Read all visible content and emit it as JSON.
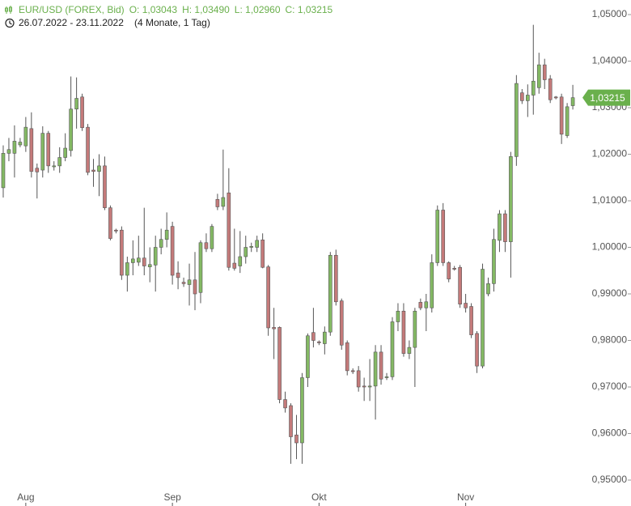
{
  "chart_data": {
    "type": "candlestick",
    "title": "EUR/USD (FOREX, Bid)",
    "ohlc_labels": [
      "O: 1,03043",
      "H: 1,03490",
      "L: 1,02960",
      "C: 1,03215"
    ],
    "date_range": "26.07.2022 - 23.11.2022",
    "period": "(4 Monate, 1 Tag)",
    "up_color": "#84b964",
    "down_color": "#c47a7a",
    "open": [
      1.0128,
      1.0202,
      1.0202,
      1.022,
      1.0218,
      1.0255,
      1.017,
      1.0166,
      1.0245,
      1.0173,
      1.0175,
      1.0193,
      1.0208,
      1.0297,
      1.0323,
      1.0258,
      1.0166,
      1.0163,
      1.0175,
      1.0085,
      1.0037,
      1.0037,
      0.994,
      0.9967,
      0.9968,
      0.9977,
      0.9958,
      0.9962,
      1.0,
      1.0017,
      1.0045,
      0.9945,
      0.9925,
      0.992,
      0.993,
      0.9903,
      1.001,
      0.9997,
      1.0103,
      1.0088,
      1.0117,
      0.9966,
      0.996,
      0.998,
      1.0,
      1.0,
      1.0016,
      0.9958,
      0.9828,
      0.9828,
      0.9673,
      0.966,
      0.9597,
      0.958,
      0.972,
      0.9817,
      0.9797,
      0.9793,
      0.9818,
      0.9983,
      0.9885,
      0.9795,
      0.9735,
      0.9735,
      0.9702,
      0.97,
      0.9702,
      0.9775,
      0.972,
      0.9722,
      0.984,
      0.9863,
      0.9772,
      0.9785,
      0.9882,
      0.987,
      0.987,
      0.9967,
      1.008,
      0.9967,
      0.9955,
      0.9957,
      0.988,
      0.9873,
      0.9815,
      0.9745,
      0.99,
      0.9922,
      1.0015,
      1.0072,
      1.0012,
      1.0195,
      1.0332,
      1.0315,
      1.0327,
      1.0343,
      1.0392,
      1.0362,
      1.0323,
      1.0323,
      1.024,
      1.03043
    ],
    "high": [
      1.0219,
      1.0235,
      1.0262,
      1.0235,
      1.028,
      1.029,
      1.018,
      1.026,
      1.025,
      1.0185,
      1.0215,
      1.0245,
      1.0367,
      1.0365,
      1.033,
      1.0265,
      1.019,
      1.02,
      1.0195,
      1.009,
      1.004,
      1.0045,
      0.998,
      1.0015,
      1.0025,
      1.0085,
      1.0,
      1.0025,
      1.004,
      1.0075,
      1.0055,
      0.997,
      0.9935,
      0.9965,
      0.999,
      1.0015,
      1.003,
      1.005,
      1.0115,
      1.021,
      1.017,
      1.004,
      1.0035,
      1.0025,
      1.001,
      1.0025,
      1.003,
      0.9962,
      0.987,
      0.983,
      0.969,
      0.9665,
      0.964,
      0.973,
      0.9815,
      0.987,
      0.98,
      0.983,
      0.999,
      0.9995,
      0.989,
      0.98,
      0.974,
      0.9745,
      0.972,
      0.976,
      0.979,
      0.979,
      0.973,
      0.985,
      0.988,
      0.988,
      0.98,
      0.987,
      0.989,
      0.99,
      0.9985,
      1.009,
      1.0095,
      0.997,
      0.996,
      0.9962,
      0.99,
      0.988,
      0.982,
      0.9965,
      0.9935,
      1.004,
      1.008,
      1.008,
      1.0205,
      1.037,
      1.034,
      1.035,
      1.0478,
      1.0418,
      1.0405,
      1.037,
      1.0325,
      1.033,
      1.031,
      1.0349
    ],
    "low": [
      1.0107,
      1.0185,
      1.015,
      1.0215,
      1.0205,
      1.015,
      1.0105,
      1.015,
      1.016,
      1.0165,
      1.016,
      1.0185,
      1.0195,
      1.0255,
      1.025,
      1.0155,
      1.013,
      1.011,
      1.008,
      1.0015,
      1.003,
      0.993,
      0.9905,
      0.994,
      0.996,
      0.994,
      0.9925,
      0.9905,
      0.9985,
      1.0,
      0.992,
      0.991,
      0.9915,
      0.9875,
      0.9865,
      0.988,
      0.999,
      0.999,
      1.008,
      1.008,
      0.995,
      0.995,
      0.9945,
      0.9965,
      0.999,
      0.999,
      0.9955,
      0.981,
      0.976,
      0.9665,
      0.9645,
      0.9535,
      0.9545,
      0.9535,
      0.97,
      0.9785,
      0.979,
      0.977,
      0.981,
      0.9875,
      0.978,
      0.9725,
      0.9728,
      0.969,
      0.967,
      0.967,
      0.963,
      0.9705,
      0.9715,
      0.9715,
      0.982,
      0.9765,
      0.976,
      0.97,
      0.9865,
      0.982,
      0.986,
      0.996,
      0.996,
      0.9925,
      0.995,
      0.987,
      0.986,
      0.9805,
      0.973,
      0.974,
      0.9895,
      0.9905,
      0.999,
      0.999,
      0.9935,
      1.0175,
      1.0308,
      1.028,
      1.0285,
      1.033,
      1.034,
      1.031,
      1.0318,
      1.0222,
      1.0235,
      1.0296
    ],
    "close": [
      1.0202,
      1.021,
      1.0228,
      1.0226,
      1.0258,
      1.0163,
      1.0162,
      1.0245,
      1.0175,
      1.0175,
      1.0193,
      1.0213,
      1.0297,
      1.032,
      1.0257,
      1.0161,
      1.0163,
      1.0175,
      1.0085,
      1.0019,
      1.0035,
      0.994,
      0.9967,
      0.9975,
      0.9977,
      0.996,
      0.9963,
      1.0,
      1.0017,
      1.0037,
      0.994,
      0.9935,
      0.9922,
      0.993,
      0.99,
      1.001,
      0.9997,
      1.0045,
      1.0087,
      1.0107,
      0.9957,
      0.9955,
      0.998,
      1.0,
      1.0002,
      1.0015,
      0.9957,
      0.9827,
      0.9825,
      0.9673,
      0.9655,
      0.9593,
      0.958,
      0.972,
      0.981,
      0.98,
      0.9795,
      0.9818,
      0.9983,
      0.9883,
      0.979,
      0.9735,
      0.9733,
      0.97,
      0.97,
      0.9702,
      0.9775,
      0.9717,
      0.9722,
      0.984,
      0.9863,
      0.9772,
      0.9785,
      0.9863,
      0.987,
      0.9883,
      0.9967,
      1.008,
      0.9967,
      0.9932,
      0.9953,
      0.9878,
      0.987,
      0.9812,
      0.9745,
      0.9953,
      0.9922,
      1.0017,
      1.0072,
      1.0012,
      1.0195,
      1.0352,
      1.0315,
      1.0327,
      1.0357,
      1.0392,
      1.036,
      1.0317,
      1.0321,
      1.0243,
      1.0302,
      1.03215
    ],
    "last_price": {
      "value": 1.03215,
      "label": "1,03215"
    },
    "xlim": [
      -0.5,
      103.5
    ],
    "xticks": [
      {
        "value": 4,
        "label": "Aug"
      },
      {
        "value": 30,
        "label": "Sep"
      },
      {
        "value": 56,
        "label": "Okt"
      },
      {
        "value": 82,
        "label": "Nov"
      }
    ],
    "ylim": [
      0.95,
      1.05
    ],
    "yticks": [
      {
        "value": 0.95,
        "label": "0,95000"
      },
      {
        "value": 0.96,
        "label": "0,96000"
      },
      {
        "value": 0.97,
        "label": "0,97000"
      },
      {
        "value": 0.98,
        "label": "0,98000"
      },
      {
        "value": 0.99,
        "label": "0,99000"
      },
      {
        "value": 1.0,
        "label": "1,00000"
      },
      {
        "value": 1.01,
        "label": "1,01000"
      },
      {
        "value": 1.02,
        "label": "1,02000"
      },
      {
        "value": 1.03,
        "label": "1,03000"
      },
      {
        "value": 1.04,
        "label": "1,04000"
      },
      {
        "value": 1.05,
        "label": "1,05000"
      }
    ],
    "grid": false
  }
}
